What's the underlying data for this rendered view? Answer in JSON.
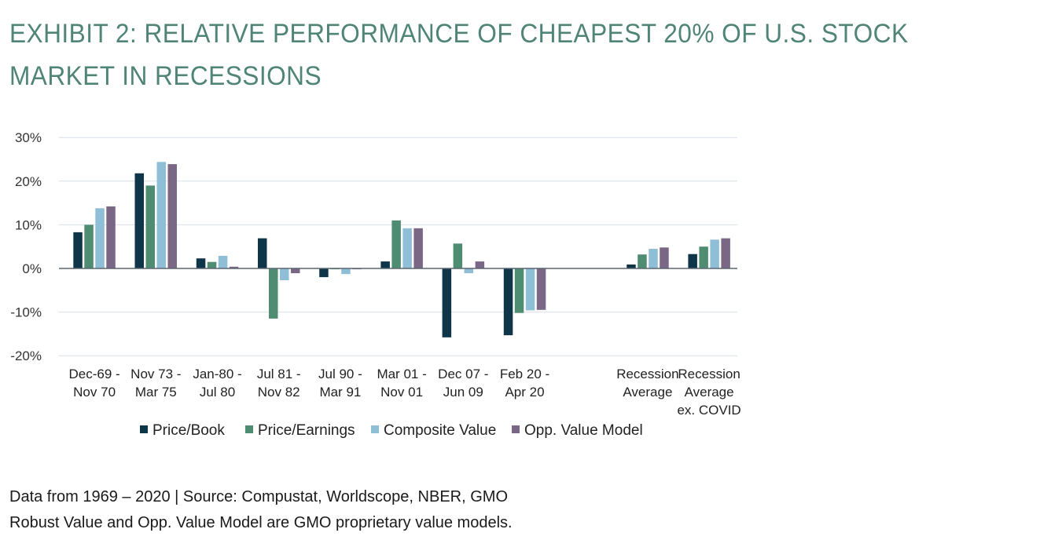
{
  "title": "EXHIBIT 2: RELATIVE PERFORMANCE OF CHEAPEST 20% OF U.S. STOCK MARKET IN RECESSIONS",
  "footnotes": {
    "line1": "Data from 1969 – 2020 | Source: Compustat, Worldscope, NBER, GMO",
    "line2": "Robust Value and Opp. Value Model are GMO proprietary value models."
  },
  "chart_data": {
    "type": "bar",
    "categories": [
      [
        "Dec-69 -",
        "Nov 70"
      ],
      [
        "Nov 73 -",
        "Mar 75"
      ],
      [
        "Jan-80 -",
        "Jul 80"
      ],
      [
        "Jul 81 -",
        "Nov 82"
      ],
      [
        "Jul 90 -",
        "Mar 91"
      ],
      [
        "Mar 01 -",
        "Nov 01"
      ],
      [
        "Dec 07 -",
        "Jun 09"
      ],
      [
        "Feb 20 -",
        "Apr 20"
      ],
      [
        "",
        ""
      ],
      [
        "Recession",
        "Average"
      ],
      [
        "Recession",
        "Average",
        "ex. COVID"
      ]
    ],
    "series": [
      {
        "name": "Price/Book",
        "color": "#0f3548",
        "values": [
          8.3,
          21.8,
          2.3,
          6.9,
          -2.0,
          1.6,
          -15.8,
          -15.3,
          null,
          0.9,
          3.3
        ]
      },
      {
        "name": "Price/Earnings",
        "color": "#4e8d71",
        "values": [
          10.0,
          19.0,
          1.5,
          -11.5,
          -0.2,
          11.0,
          5.7,
          -10.2,
          null,
          3.2,
          5.0
        ]
      },
      {
        "name": "Composite Value",
        "color": "#8fbfd6",
        "values": [
          13.8,
          24.4,
          2.9,
          -2.7,
          -1.3,
          9.2,
          -1.1,
          -9.6,
          null,
          4.5,
          6.6
        ]
      },
      {
        "name": "Opp. Value Model",
        "color": "#7a6685",
        "values": [
          14.2,
          23.9,
          0.4,
          -1.1,
          -0.2,
          9.2,
          1.6,
          -9.5,
          null,
          4.8,
          6.9
        ]
      }
    ],
    "yticks": [
      30,
      20,
      10,
      0,
      -10,
      -20
    ],
    "ytick_labels": [
      "30%",
      "20%",
      "10%",
      "0%",
      "-10%",
      "-20%"
    ],
    "ylim": [
      -20,
      30
    ],
    "grid": true,
    "legend": "bottom",
    "xlabel": "",
    "ylabel": ""
  }
}
